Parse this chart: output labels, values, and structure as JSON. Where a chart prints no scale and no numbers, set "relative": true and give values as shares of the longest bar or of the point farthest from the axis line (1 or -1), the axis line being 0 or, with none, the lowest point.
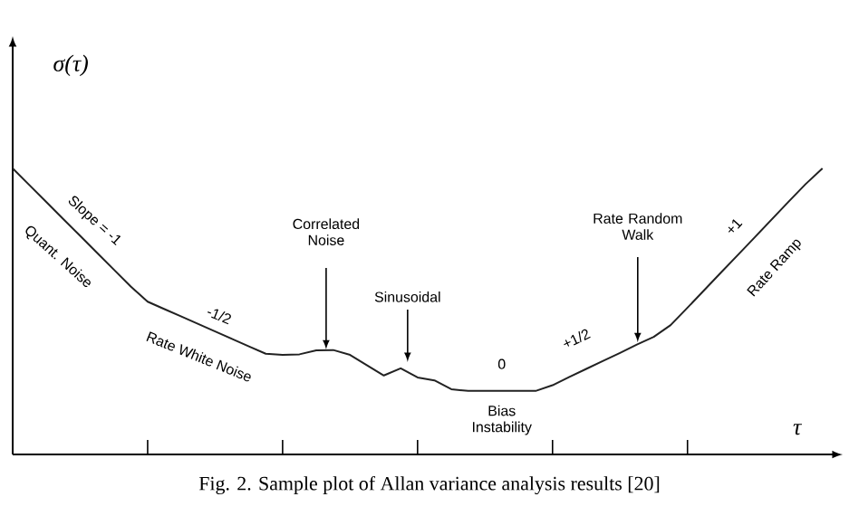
{
  "chart_data": {
    "type": "line",
    "relative": true,
    "xlabel": "τ",
    "ylabel": "σ(τ)",
    "color": "#222222",
    "categories": [
      null,
      null,
      null,
      null,
      null,
      null,
      null,
      null,
      null,
      null,
      null,
      null,
      null,
      null,
      null,
      null,
      null,
      null,
      null,
      null,
      null,
      null,
      null,
      null,
      null,
      null,
      null,
      null,
      null,
      null,
      null,
      null,
      null,
      null,
      null,
      null,
      null,
      null,
      null,
      null,
      null,
      null,
      null,
      null,
      null,
      null,
      null,
      null,
      null
    ],
    "values": [
      1.0,
      0.941,
      0.882,
      0.823,
      0.764,
      0.705,
      0.646,
      0.587,
      0.534,
      0.508,
      0.482,
      0.456,
      0.43,
      0.404,
      0.378,
      0.352,
      0.348,
      0.35,
      0.364,
      0.365,
      0.348,
      0.312,
      0.276,
      0.301,
      0.269,
      0.259,
      0.228,
      0.222,
      0.222,
      0.222,
      0.222,
      0.222,
      0.242,
      0.271,
      0.299,
      0.327,
      0.355,
      0.384,
      0.411,
      0.452,
      0.513,
      0.575,
      0.637,
      0.698,
      0.76,
      0.822,
      0.884,
      0.945,
      1.0
    ],
    "annotations": [
      "Slope = -1",
      "Quant. Noise",
      "-1/2",
      "Rate White Noise",
      "Correlated Noise",
      "Sinusoidal",
      "0",
      "Bias Instability",
      "+1/2",
      "Rate Random Walk",
      "+1",
      "Rate Ramp",
      "Fig. 2.   Sample plot of Allan variance analysis results [20]"
    ]
  }
}
